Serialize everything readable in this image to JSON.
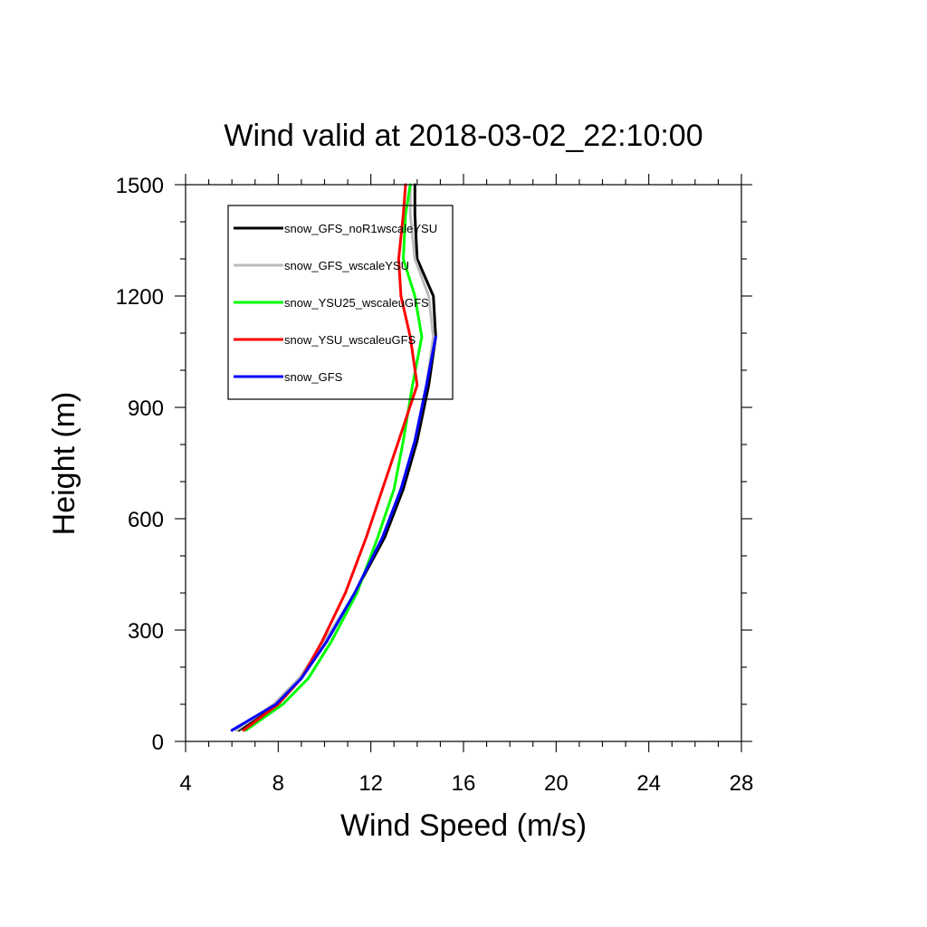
{
  "chart_data": {
    "type": "line",
    "title": "Wind valid at 2018-03-02_22:10:00",
    "xlabel": "Wind Speed (m/s)",
    "ylabel": "Height (m)",
    "xlim": [
      4,
      28
    ],
    "ylim": [
      0,
      1500
    ],
    "xticks": [
      4,
      8,
      12,
      16,
      20,
      24,
      28
    ],
    "yticks": [
      0,
      300,
      600,
      900,
      1200,
      1500
    ],
    "grid": false,
    "legend_position": "top-left",
    "series": [
      {
        "name": "snow_GFS_noR1wscaleYSU",
        "color": "#000000",
        "points": [
          [
            6.3,
            30
          ],
          [
            7.9,
            100
          ],
          [
            9.0,
            170
          ],
          [
            10.1,
            270
          ],
          [
            11.3,
            400
          ],
          [
            12.6,
            550
          ],
          [
            13.4,
            680
          ],
          [
            14.0,
            810
          ],
          [
            14.5,
            960
          ],
          [
            14.8,
            1090
          ],
          [
            14.7,
            1200
          ],
          [
            14.0,
            1300
          ],
          [
            13.9,
            1420
          ],
          [
            13.9,
            1500
          ]
        ]
      },
      {
        "name": "snow_GFS_wscaleYSU",
        "color": "#bbbbbb",
        "points": [
          [
            6.2,
            30
          ],
          [
            7.8,
            100
          ],
          [
            8.9,
            170
          ],
          [
            10.0,
            270
          ],
          [
            11.3,
            400
          ],
          [
            12.5,
            550
          ],
          [
            13.3,
            680
          ],
          [
            13.9,
            810
          ],
          [
            14.4,
            960
          ],
          [
            14.7,
            1090
          ],
          [
            14.5,
            1200
          ],
          [
            13.9,
            1300
          ],
          [
            13.7,
            1420
          ],
          [
            13.7,
            1500
          ]
        ]
      },
      {
        "name": "snow_YSU25_wscaleuGFS",
        "color": "#00ff00",
        "points": [
          [
            6.6,
            30
          ],
          [
            8.2,
            100
          ],
          [
            9.3,
            170
          ],
          [
            10.3,
            270
          ],
          [
            11.4,
            400
          ],
          [
            12.3,
            550
          ],
          [
            13.0,
            680
          ],
          [
            13.4,
            810
          ],
          [
            13.8,
            960
          ],
          [
            14.2,
            1090
          ],
          [
            13.9,
            1200
          ],
          [
            13.4,
            1300
          ],
          [
            13.5,
            1420
          ],
          [
            13.7,
            1500
          ]
        ]
      },
      {
        "name": "snow_YSU_wscaleuGFS",
        "color": "#ff0000",
        "points": [
          [
            6.5,
            30
          ],
          [
            8.0,
            100
          ],
          [
            9.0,
            170
          ],
          [
            9.9,
            270
          ],
          [
            10.9,
            400
          ],
          [
            11.8,
            550
          ],
          [
            12.5,
            680
          ],
          [
            13.2,
            810
          ],
          [
            14.0,
            960
          ],
          [
            13.7,
            1090
          ],
          [
            13.3,
            1200
          ],
          [
            13.2,
            1300
          ],
          [
            13.4,
            1420
          ],
          [
            13.5,
            1500
          ]
        ]
      },
      {
        "name": "snow_GFS",
        "color": "#0000ff",
        "points": [
          [
            6.0,
            30
          ],
          [
            7.9,
            100
          ],
          [
            9.0,
            170
          ],
          [
            10.1,
            270
          ],
          [
            11.3,
            400
          ],
          [
            12.5,
            550
          ],
          [
            13.3,
            680
          ],
          [
            13.9,
            810
          ],
          [
            14.4,
            960
          ],
          [
            14.8,
            1090
          ]
        ]
      }
    ]
  }
}
